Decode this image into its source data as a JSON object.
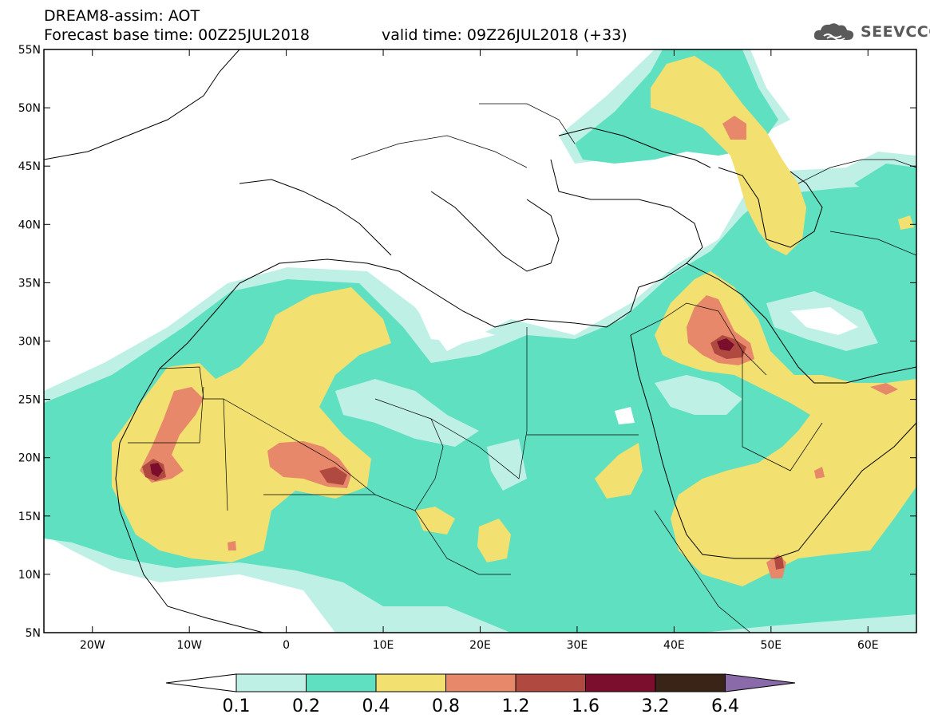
{
  "header": {
    "title": "DREAM8-assim: AOT",
    "base_time": "Forecast base time: 00Z25JUL2018",
    "valid_time": "valid time: 09Z26JUL2018 (+33)"
  },
  "logo": {
    "text": "SEEVCCC",
    "icon": "cloud-icon"
  },
  "map": {
    "lon_range": [
      -25,
      65
    ],
    "lat_range": [
      5,
      55
    ],
    "lon_ticks": [
      "20W",
      "10W",
      "0",
      "10E",
      "20E",
      "30E",
      "40E",
      "50E",
      "60E"
    ],
    "lat_ticks": [
      "55N",
      "50N",
      "45N",
      "40N",
      "35N",
      "30N",
      "25N",
      "20N",
      "15N",
      "10N",
      "5N"
    ]
  },
  "colorbar": {
    "labels": [
      "0.1",
      "0.2",
      "0.4",
      "0.8",
      "1.2",
      "1.6",
      "3.2",
      "6.4"
    ],
    "colors": [
      "#ffffff",
      "#bff0e6",
      "#5fe0c0",
      "#f2e070",
      "#e8886a",
      "#b04a40",
      "#7a0e2c",
      "#3a2418",
      "#8a6aa8"
    ]
  }
}
